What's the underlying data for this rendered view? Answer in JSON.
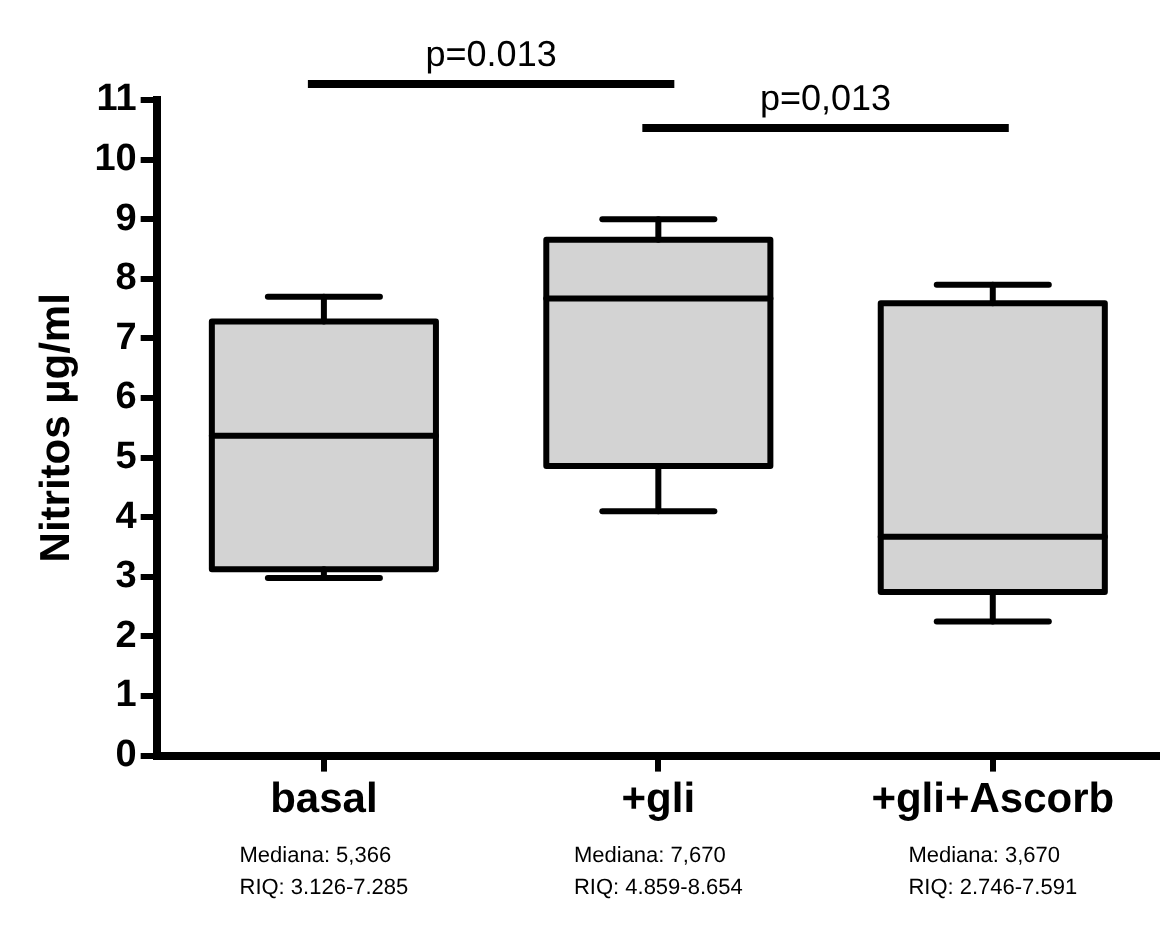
{
  "chart_data": {
    "type": "box",
    "categories": [
      "basal",
      "+gli",
      "+gli+Ascorb"
    ],
    "color": "#d3d3d3",
    "boxes": [
      {
        "low": 2.98,
        "q1": 3.126,
        "median": 5.366,
        "q3": 7.285,
        "high": 7.7
      },
      {
        "low": 4.1,
        "q1": 4.859,
        "median": 7.67,
        "q3": 8.654,
        "high": 9.0
      },
      {
        "low": 2.25,
        "q1": 2.746,
        "median": 3.67,
        "q3": 7.591,
        "high": 7.9
      }
    ],
    "ylabel": "Nitritos µg/ml",
    "ylim": [
      0,
      11
    ],
    "yticks": [
      0,
      1,
      2,
      3,
      4,
      5,
      6,
      7,
      8,
      9,
      10,
      11
    ],
    "grid": false,
    "legend": false,
    "annotations": [
      "p=0.013",
      "p=0,013",
      "Mediana: 5,366\nRIQ: 3.126-7.285",
      "Mediana: 7,670\nRIQ: 4.859-8.654",
      "Mediana: 3,670\nRIQ: 2.746-7.591"
    ]
  }
}
